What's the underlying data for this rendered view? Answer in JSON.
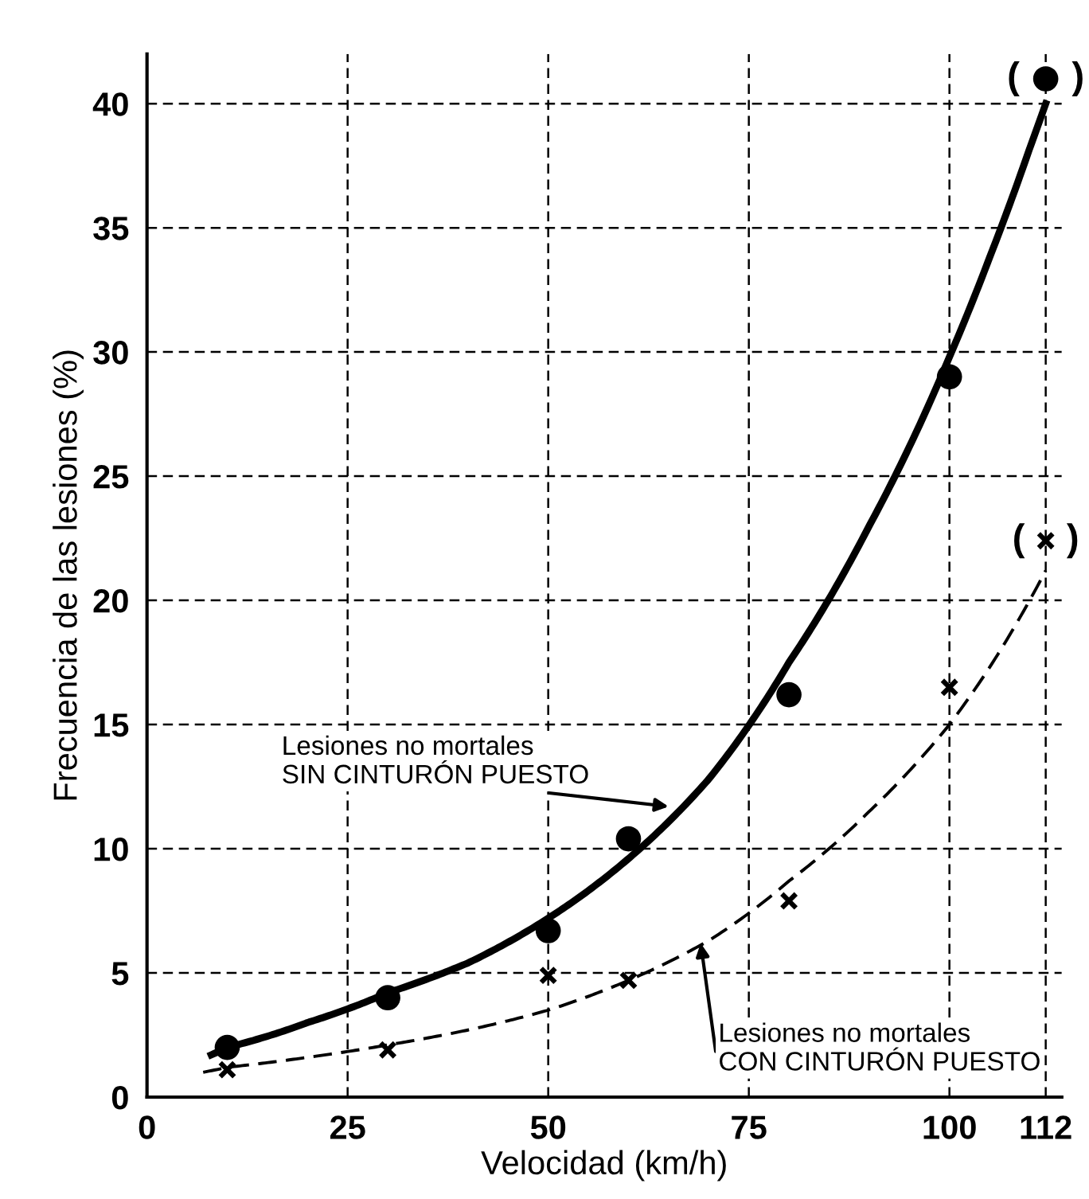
{
  "chart_data": {
    "type": "line",
    "xlabel": "Velocidad (km/h)",
    "ylabel": "Frecuencia de las lesiones (%)",
    "xlim": [
      0,
      114
    ],
    "ylim": [
      0,
      42
    ],
    "xticks": [
      0,
      25,
      50,
      75,
      100,
      112
    ],
    "yticks": [
      0,
      5,
      10,
      15,
      20,
      25,
      30,
      35,
      40
    ],
    "grid": true,
    "series": [
      {
        "color": "#000000",
        "line_style": "solid",
        "x": [
          8,
          10,
          20,
          30,
          40,
          50,
          60,
          70,
          80,
          90,
          100,
          105,
          110,
          112
        ],
        "values": [
          1.7,
          2.0,
          3.0,
          4.2,
          5.4,
          7.2,
          9.6,
          12.8,
          17.5,
          23,
          29.8,
          33.8,
          38.2,
          40
        ]
      },
      {
        "type": "scatter",
        "color": "#000000",
        "marker": "circle",
        "x": [
          10,
          30,
          50,
          60,
          80,
          100,
          112
        ],
        "values": [
          2.0,
          4.0,
          6.7,
          10.4,
          16.2,
          29,
          41
        ]
      },
      {
        "color": "#000000",
        "line_style": "dashed",
        "x": [
          7,
          10,
          20,
          30,
          40,
          50,
          60,
          70,
          80,
          90,
          100,
          105,
          112
        ],
        "values": [
          1.0,
          1.2,
          1.6,
          2.1,
          2.7,
          3.5,
          4.7,
          6.3,
          8.7,
          11.5,
          15,
          17.3,
          21.2
        ]
      },
      {
        "type": "scatter",
        "color": "#000000",
        "marker": "cross",
        "x": [
          10,
          30,
          50,
          60,
          80,
          100,
          112
        ],
        "values": [
          1.1,
          1.9,
          4.9,
          4.7,
          7.9,
          16.5,
          22.4
        ]
      }
    ],
    "annotations": [
      {
        "text": "Lesiones no mortales\nSIN CINTURÓN PUESTO",
        "x": 65,
        "y": 11.7
      },
      {
        "text": "Lesiones no mortales\nCON CINTURÓN PUESTO",
        "x": 69,
        "y": 6.2
      },
      {
        "text": "(     )",
        "x": 112,
        "y": 41
      },
      {
        "text": "(    )",
        "x": 112,
        "y": 22.4
      }
    ]
  }
}
